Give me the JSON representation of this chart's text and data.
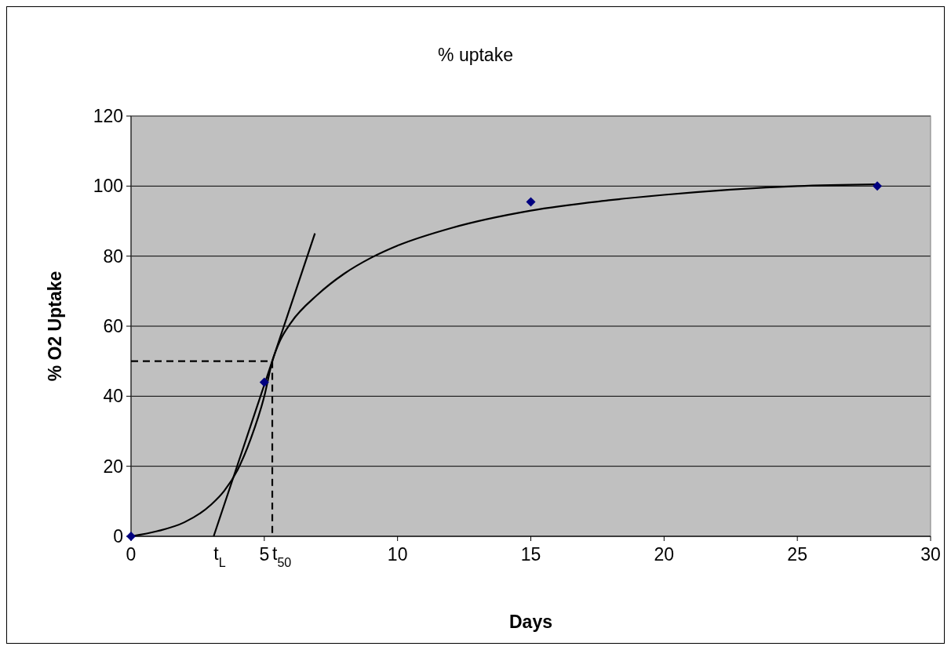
{
  "chart_data": {
    "type": "scatter",
    "title": "% uptake",
    "xlabel": "Days",
    "ylabel": "% O2 Uptake",
    "xlim": [
      0,
      30
    ],
    "xticks": [
      0,
      5,
      10,
      15,
      20,
      25,
      30
    ],
    "ylim": [
      0,
      120
    ],
    "yticks": [
      0,
      20,
      40,
      60,
      80,
      100,
      120
    ],
    "grid": "y",
    "series": [
      {
        "type": "line",
        "color": "#000000",
        "marker": "none",
        "line_style": "solid",
        "x": [
          0,
          1,
          2,
          3,
          3.5,
          4,
          4.5,
          5,
          5.3,
          5.6,
          6,
          7,
          8,
          9,
          10,
          12,
          15,
          18,
          20,
          25,
          28
        ],
        "values": [
          0,
          1.5,
          4,
          9,
          13,
          19,
          28,
          40,
          50,
          56,
          61,
          69,
          75,
          79.5,
          83,
          88,
          93,
          96,
          97.5,
          100,
          100.5
        ]
      },
      {
        "type": "line",
        "color": "#000000",
        "marker": "none",
        "line_style": "solid",
        "x": [
          3.1,
          6.9
        ],
        "values": [
          0,
          86.5
        ]
      },
      {
        "type": "line",
        "color": "#000000",
        "marker": "none",
        "line_style": "dashed",
        "x": [
          0,
          5.3,
          5.3
        ],
        "values": [
          50,
          50,
          0
        ]
      },
      {
        "color": "#000080",
        "marker": "diamond",
        "x": [
          0,
          5,
          15,
          28
        ],
        "values": [
          0,
          44,
          95.5,
          100
        ]
      }
    ],
    "annotations": [
      {
        "text": "t$_{L}$",
        "x": 3.1,
        "y": 0
      },
      {
        "text": "t$_{50}$",
        "x": 5.3,
        "y": 0
      }
    ]
  }
}
